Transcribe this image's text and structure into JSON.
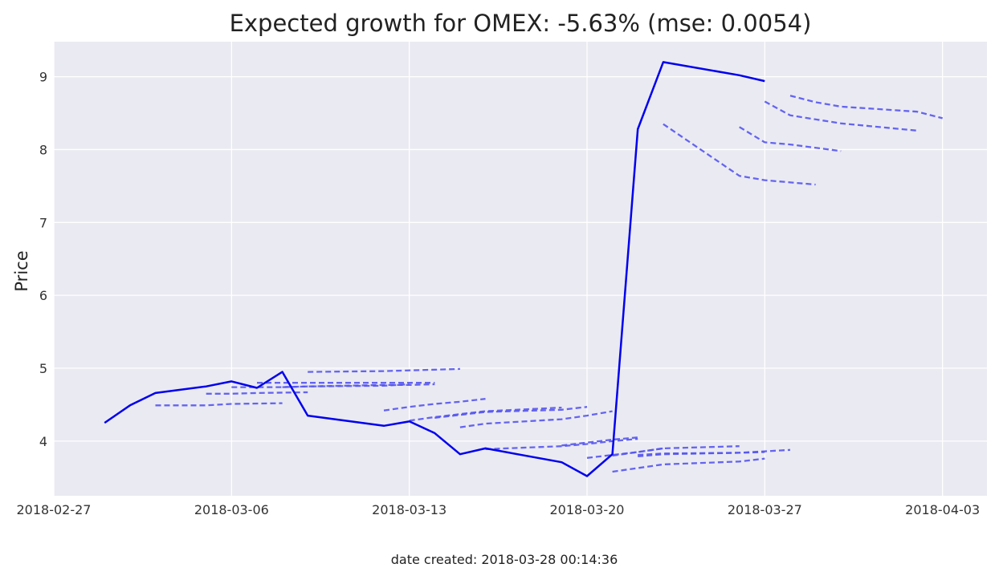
{
  "chart_data": {
    "type": "line",
    "title": "Expected growth for OMEX: -5.63% (mse: 0.0054)",
    "xlabel": "",
    "ylabel": "Price",
    "footer": "date created: 2018-03-28 00:14:36",
    "x_ticks": [
      "2018-02-27",
      "2018-03-06",
      "2018-03-13",
      "2018-03-20",
      "2018-03-27",
      "2018-04-03"
    ],
    "y_ticks": [
      4,
      5,
      6,
      7,
      8,
      9
    ],
    "xlim": [
      "2018-02-27 00:00",
      "2018-04-04 18:00"
    ],
    "ylim": [
      3.25,
      9.48
    ],
    "grid": true,
    "background": "#EAEAF2",
    "grid_color": "#FFFFFF",
    "actual_color": "#0000EE",
    "forecast_color": "#5555EE",
    "series": [
      {
        "style": "solid",
        "x": [
          "2018-03-01",
          "2018-03-02",
          "2018-03-03",
          "2018-03-05",
          "2018-03-06",
          "2018-03-07",
          "2018-03-08",
          "2018-03-09",
          "2018-03-12",
          "2018-03-13",
          "2018-03-14",
          "2018-03-15",
          "2018-03-16",
          "2018-03-19",
          "2018-03-20",
          "2018-03-21",
          "2018-03-22",
          "2018-03-23",
          "2018-03-26",
          "2018-03-27"
        ],
        "y": [
          4.25,
          4.49,
          4.66,
          4.75,
          4.82,
          4.73,
          4.95,
          4.35,
          4.21,
          4.27,
          4.11,
          3.82,
          3.9,
          3.71,
          3.52,
          3.82,
          8.28,
          9.2,
          9.02,
          8.94
        ]
      },
      {
        "style": "dashed",
        "x": [
          "2018-03-03",
          "2018-03-05",
          "2018-03-06",
          "2018-03-08"
        ],
        "y": [
          4.49,
          4.49,
          4.51,
          4.52
        ]
      },
      {
        "style": "dashed",
        "x": [
          "2018-03-05",
          "2018-03-06",
          "2018-03-07",
          "2018-03-09"
        ],
        "y": [
          4.65,
          4.65,
          4.66,
          4.67
        ]
      },
      {
        "style": "dashed",
        "x": [
          "2018-03-06",
          "2018-03-07",
          "2018-03-08",
          "2018-03-09",
          "2018-03-12",
          "2018-03-13"
        ],
        "y": [
          4.74,
          4.74,
          4.74,
          4.75,
          4.76,
          4.78
        ]
      },
      {
        "style": "dashed",
        "x": [
          "2018-03-07",
          "2018-03-08",
          "2018-03-09",
          "2018-03-12",
          "2018-03-13",
          "2018-03-14"
        ],
        "y": [
          4.8,
          4.8,
          4.8,
          4.8,
          4.8,
          4.8
        ]
      },
      {
        "style": "dashed",
        "x": [
          "2018-03-08",
          "2018-03-09",
          "2018-03-12",
          "2018-03-13",
          "2018-03-14"
        ],
        "y": [
          4.74,
          4.75,
          4.77,
          4.77,
          4.78
        ]
      },
      {
        "style": "dashed",
        "x": [
          "2018-03-09",
          "2018-03-12",
          "2018-03-13",
          "2018-03-14",
          "2018-03-15"
        ],
        "y": [
          4.95,
          4.96,
          4.97,
          4.98,
          4.99
        ]
      },
      {
        "style": "dashed",
        "x": [
          "2018-03-12",
          "2018-03-13",
          "2018-03-14",
          "2018-03-15",
          "2018-03-16"
        ],
        "y": [
          4.42,
          4.47,
          4.51,
          4.54,
          4.58
        ]
      },
      {
        "style": "dashed",
        "x": [
          "2018-03-13",
          "2018-03-14",
          "2018-03-15",
          "2018-03-16",
          "2018-03-19"
        ],
        "y": [
          4.28,
          4.33,
          4.37,
          4.41,
          4.46
        ]
      },
      {
        "style": "dashed",
        "x": [
          "2018-03-14",
          "2018-03-15",
          "2018-03-16",
          "2018-03-19",
          "2018-03-20"
        ],
        "y": [
          4.32,
          4.36,
          4.4,
          4.43,
          4.47
        ]
      },
      {
        "style": "dashed",
        "x": [
          "2018-03-15",
          "2018-03-16",
          "2018-03-19",
          "2018-03-20",
          "2018-03-21"
        ],
        "y": [
          4.19,
          4.24,
          4.3,
          4.35,
          4.41
        ]
      },
      {
        "style": "dashed",
        "x": [
          "2018-03-16",
          "2018-03-19",
          "2018-03-20",
          "2018-03-21",
          "2018-03-22"
        ],
        "y": [
          3.89,
          3.93,
          3.96,
          4.0,
          4.03
        ]
      },
      {
        "style": "dashed",
        "x": [
          "2018-03-19",
          "2018-03-20",
          "2018-03-21",
          "2018-03-22"
        ],
        "y": [
          3.94,
          3.98,
          4.02,
          4.05
        ]
      },
      {
        "style": "dashed",
        "x": [
          "2018-03-20",
          "2018-03-21",
          "2018-03-22",
          "2018-03-23"
        ],
        "y": [
          3.77,
          3.81,
          3.85,
          3.9
        ]
      },
      {
        "style": "dashed",
        "x": [
          "2018-03-21",
          "2018-03-22",
          "2018-03-23",
          "2018-03-26"
        ],
        "y": [
          3.8,
          3.85,
          3.9,
          3.93
        ]
      },
      {
        "style": "dashed",
        "x": [
          "2018-03-22",
          "2018-03-23",
          "2018-03-26",
          "2018-03-27"
        ],
        "y": [
          3.81,
          3.83,
          3.84,
          3.85
        ]
      },
      {
        "style": "dashed",
        "x": [
          "2018-03-22",
          "2018-03-23",
          "2018-03-26",
          "2018-03-27",
          "2018-03-28"
        ],
        "y": [
          3.79,
          3.82,
          3.84,
          3.86,
          3.88
        ]
      },
      {
        "style": "dashed",
        "x": [
          "2018-03-21",
          "2018-03-23",
          "2018-03-26",
          "2018-03-27"
        ],
        "y": [
          3.58,
          3.68,
          3.72,
          3.76
        ]
      },
      {
        "style": "dashed",
        "x": [
          "2018-03-23",
          "2018-03-26",
          "2018-03-27",
          "2018-03-29"
        ],
        "y": [
          8.35,
          7.64,
          7.58,
          7.52
        ]
      },
      {
        "style": "dashed",
        "x": [
          "2018-03-26",
          "2018-03-27",
          "2018-03-28",
          "2018-03-30"
        ],
        "y": [
          8.31,
          8.1,
          8.07,
          7.98
        ]
      },
      {
        "style": "dashed",
        "x": [
          "2018-03-27",
          "2018-03-28",
          "2018-03-30",
          "2018-04-02"
        ],
        "y": [
          8.66,
          8.47,
          8.36,
          8.26
        ]
      },
      {
        "style": "dashed",
        "x": [
          "2018-03-28",
          "2018-03-29",
          "2018-03-30",
          "2018-04-02",
          "2018-04-03"
        ],
        "y": [
          8.74,
          8.65,
          8.59,
          8.52,
          8.43
        ]
      }
    ]
  }
}
